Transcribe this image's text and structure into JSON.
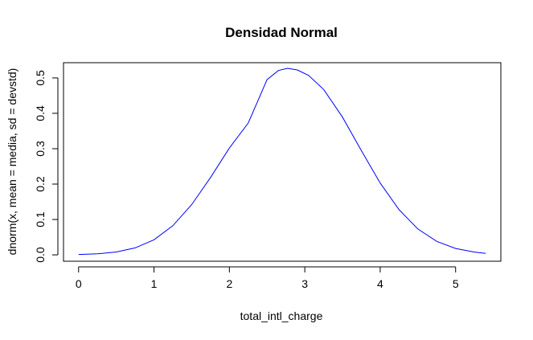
{
  "chart_data": {
    "type": "line",
    "title": "Densidad Normal",
    "xlabel": "total_intl_charge",
    "ylabel": "dnorm(x, mean = media, sd = devstd)",
    "xlim": [
      -0.2,
      5.6
    ],
    "ylim": [
      -0.018,
      0.543
    ],
    "x_ticks": [
      0,
      1,
      2,
      3,
      4,
      5
    ],
    "x_tick_labels": [
      "0",
      "1",
      "2",
      "3",
      "4",
      "5"
    ],
    "y_ticks": [
      0.0,
      0.1,
      0.2,
      0.3,
      0.4,
      0.5
    ],
    "y_tick_labels": [
      "0.0",
      "0.1",
      "0.2",
      "0.3",
      "0.4",
      "0.5"
    ],
    "grid": false,
    "legend": "none",
    "series": [
      {
        "color": "#0000ff",
        "x": [
          0.0,
          0.25,
          0.5,
          0.75,
          1.0,
          1.25,
          1.5,
          1.75,
          2.0,
          2.25,
          2.5,
          2.65,
          2.77,
          2.9,
          3.05,
          3.25,
          3.5,
          3.75,
          4.0,
          4.25,
          4.5,
          4.75,
          5.0,
          5.25,
          5.4
        ],
        "y": [
          0.001,
          0.003,
          0.0082,
          0.0198,
          0.0427,
          0.0823,
          0.1418,
          0.2186,
          0.3017,
          0.3726,
          0.495,
          0.521,
          0.527,
          0.5225,
          0.5071,
          0.4674,
          0.3893,
          0.2946,
          0.203,
          0.1275,
          0.073,
          0.0381,
          0.0182,
          0.0079,
          0.0043
        ]
      }
    ]
  }
}
